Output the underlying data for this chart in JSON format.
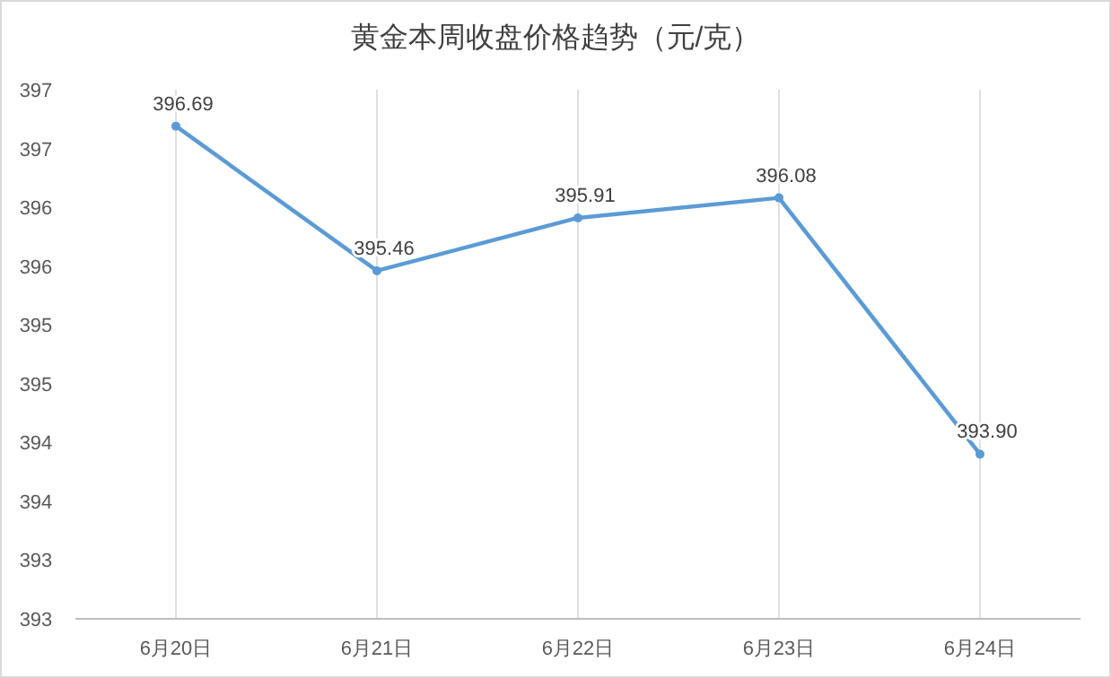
{
  "chart_data": {
    "type": "line",
    "title": "黄金本周收盘价格趋势（元/克）",
    "categories": [
      "6月20日",
      "6月21日",
      "6月22日",
      "6月23日",
      "6月24日"
    ],
    "series": [
      {
        "color": "#5b9bd5",
        "values": [
          396.69,
          395.46,
          395.91,
          396.08,
          393.9
        ],
        "value_labels": [
          "396.69",
          "395.46",
          "395.91",
          "396.08",
          "393.90"
        ]
      }
    ],
    "ylim": [
      392.5,
      397
    ],
    "yticks": [
      {
        "value": 392.5,
        "label": "393"
      },
      {
        "value": 393,
        "label": "393"
      },
      {
        "value": 393.5,
        "label": "394"
      },
      {
        "value": 394,
        "label": "394"
      },
      {
        "value": 394.5,
        "label": "395"
      },
      {
        "value": 395,
        "label": "395"
      },
      {
        "value": 395.5,
        "label": "396"
      },
      {
        "value": 396,
        "label": "396"
      },
      {
        "value": 396.5,
        "label": "397"
      },
      {
        "value": 397,
        "label": "397"
      }
    ],
    "grid": "x",
    "marker": "circle",
    "line_style": "solid"
  }
}
